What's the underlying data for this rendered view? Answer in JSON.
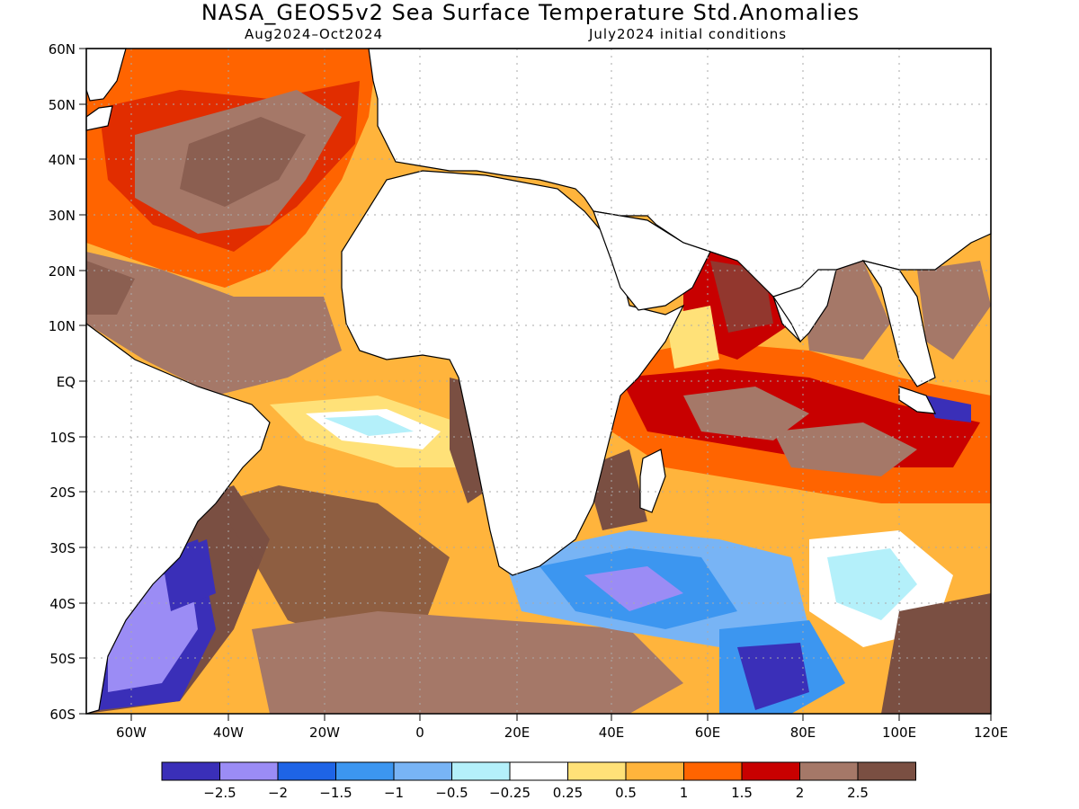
{
  "title": "NASA_GEOS5v2 Sea Surface Temperature Std.Anomalies",
  "period": "Aug2024–Oct2024",
  "initial_conditions": "July2024 initial conditions",
  "lat_labels": [
    "60N",
    "50N",
    "40N",
    "30N",
    "20N",
    "10N",
    "EQ",
    "10S",
    "20S",
    "30S",
    "40S",
    "50S",
    "60S"
  ],
  "lon_labels": [
    "60W",
    "40W",
    "20W",
    "0",
    "20E",
    "40E",
    "60E",
    "80E",
    "100E",
    "120E"
  ],
  "colorbar": {
    "colors": [
      "#3a2fb8",
      "#9b8cf5",
      "#1e64e6",
      "#3c96f0",
      "#78b4f5",
      "#b4f0fa",
      "#ffffff",
      "#ffe178",
      "#ffb43c",
      "#ff6400",
      "#c80000",
      "#a57868",
      "#7a4f42"
    ],
    "labels": [
      "−2.5",
      "−2",
      "−1.5",
      "−1",
      "−0.5",
      "−0.25",
      "0.25",
      "0.5",
      "1",
      "1.5",
      "2",
      "2.5"
    ]
  },
  "legend_swatches": {
    "land": "#ffffff",
    "coastline": "#000000",
    "grid": "#aaaaaa"
  }
}
